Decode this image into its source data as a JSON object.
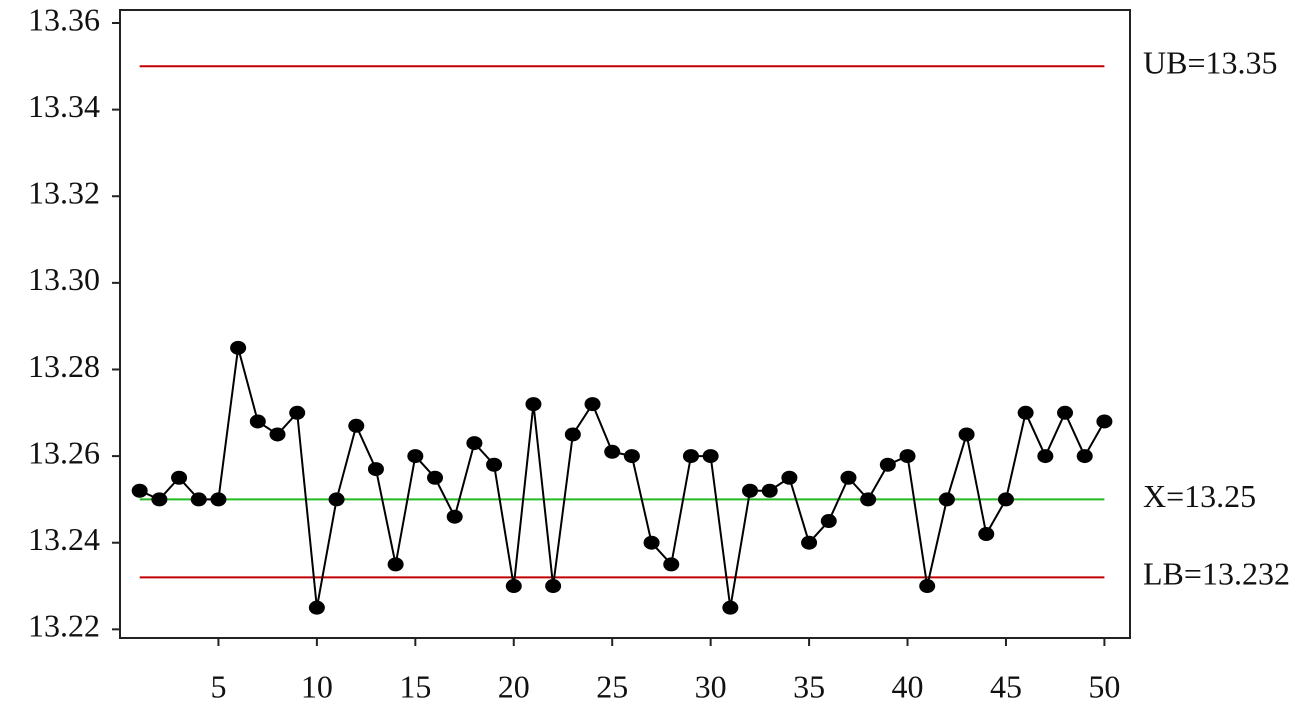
{
  "chart_data": {
    "type": "line",
    "x": [
      1,
      2,
      3,
      4,
      5,
      6,
      7,
      8,
      9,
      10,
      11,
      12,
      13,
      14,
      15,
      16,
      17,
      18,
      19,
      20,
      21,
      22,
      23,
      24,
      25,
      26,
      27,
      28,
      29,
      30,
      31,
      32,
      33,
      34,
      35,
      36,
      37,
      38,
      39,
      40,
      41,
      42,
      43,
      44,
      45,
      46,
      47,
      48,
      49,
      50
    ],
    "series": [
      {
        "color": "#000000",
        "values": [
          13.252,
          13.25,
          13.255,
          13.25,
          13.25,
          13.285,
          13.268,
          13.265,
          13.27,
          13.225,
          13.25,
          13.267,
          13.257,
          13.235,
          13.26,
          13.255,
          13.246,
          13.263,
          13.258,
          13.23,
          13.272,
          13.23,
          13.265,
          13.272,
          13.261,
          13.26,
          13.24,
          13.235,
          13.26,
          13.26,
          13.225,
          13.252,
          13.252,
          13.255,
          13.24,
          13.245,
          13.255,
          13.25,
          13.258,
          13.26,
          13.23,
          13.25,
          13.265,
          13.242,
          13.25,
          13.27,
          13.26,
          13.27,
          13.26,
          13.268
        ]
      }
    ],
    "reference_lines": [
      {
        "value": 13.35,
        "label": "UB=13.35",
        "color": "#c00000"
      },
      {
        "value": 13.25,
        "label": "X=13.25",
        "color": "#22bb22"
      },
      {
        "value": 13.232,
        "label": "LB=13.232",
        "color": "#c00000"
      }
    ],
    "xlim": [
      0,
      51.3
    ],
    "xticks": [
      5,
      10,
      15,
      20,
      25,
      30,
      35,
      40,
      45,
      50
    ],
    "ylim": [
      13.218,
      13.363
    ],
    "yticks": [
      13.22,
      13.24,
      13.26,
      13.28,
      {
        "value": 13.3,
        "label": "13.30"
      },
      13.32,
      13.34,
      13.36
    ]
  }
}
